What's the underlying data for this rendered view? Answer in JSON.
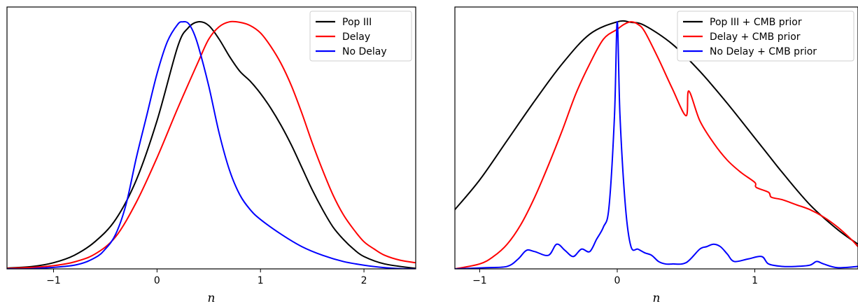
{
  "chart_data": [
    {
      "type": "line",
      "xlabel": "n",
      "ylabel": "",
      "xlim": [
        -1.45,
        2.5
      ],
      "ylim": [
        0,
        1.06
      ],
      "xticks": [
        -1,
        0,
        1,
        2
      ],
      "xtick_labels": [
        "−1",
        "0",
        "1",
        "2"
      ],
      "grid": false,
      "legend_position": "top-right",
      "series": [
        {
          "name": "Pop III",
          "color": "#000000",
          "x": [
            -1.45,
            -1.2,
            -1.0,
            -0.8,
            -0.6,
            -0.4,
            -0.2,
            0.0,
            0.2,
            0.3,
            0.4,
            0.5,
            0.6,
            0.7,
            0.8,
            0.9,
            1.0,
            1.1,
            1.2,
            1.3,
            1.4,
            1.5,
            1.6,
            1.7,
            1.8,
            1.9,
            2.0,
            2.2,
            2.5
          ],
          "values": [
            0.003,
            0.01,
            0.025,
            0.055,
            0.11,
            0.2,
            0.36,
            0.6,
            0.9,
            0.975,
            1.0,
            0.985,
            0.93,
            0.86,
            0.8,
            0.76,
            0.71,
            0.65,
            0.58,
            0.5,
            0.41,
            0.32,
            0.24,
            0.17,
            0.12,
            0.08,
            0.05,
            0.02,
            0.002
          ]
        },
        {
          "name": "Delay",
          "color": "#ff0000",
          "x": [
            -1.45,
            -1.2,
            -1.0,
            -0.8,
            -0.6,
            -0.4,
            -0.2,
            0.0,
            0.2,
            0.4,
            0.5,
            0.6,
            0.7,
            0.8,
            0.9,
            1.0,
            1.1,
            1.2,
            1.3,
            1.4,
            1.5,
            1.6,
            1.7,
            1.8,
            1.9,
            2.0,
            2.1,
            2.2,
            2.35,
            2.5
          ],
          "values": [
            0.002,
            0.006,
            0.013,
            0.028,
            0.06,
            0.13,
            0.27,
            0.45,
            0.65,
            0.84,
            0.93,
            0.98,
            1.0,
            0.998,
            0.985,
            0.955,
            0.9,
            0.83,
            0.74,
            0.63,
            0.51,
            0.4,
            0.3,
            0.22,
            0.16,
            0.11,
            0.08,
            0.055,
            0.035,
            0.025
          ]
        },
        {
          "name": "No Delay",
          "color": "#0000ff",
          "x": [
            -1.45,
            -1.2,
            -0.8,
            -0.6,
            -0.5,
            -0.4,
            -0.3,
            -0.2,
            -0.1,
            0.0,
            0.1,
            0.2,
            0.25,
            0.3,
            0.35,
            0.4,
            0.5,
            0.6,
            0.7,
            0.8,
            0.9,
            1.0,
            1.2,
            1.4,
            1.6,
            1.8,
            2.0,
            2.2,
            2.35,
            2.5
          ],
          "values": [
            0.0,
            0.001,
            0.015,
            0.045,
            0.08,
            0.14,
            0.26,
            0.45,
            0.62,
            0.79,
            0.92,
            0.99,
            1.0,
            0.995,
            0.96,
            0.9,
            0.74,
            0.55,
            0.4,
            0.3,
            0.24,
            0.2,
            0.14,
            0.09,
            0.055,
            0.03,
            0.015,
            0.005,
            0.001,
            0.0
          ]
        }
      ]
    },
    {
      "type": "line",
      "xlabel": "n",
      "ylabel": "",
      "xlim": [
        -1.18,
        1.75
      ],
      "ylim": [
        0,
        1.06
      ],
      "xticks": [
        -1,
        0,
        1
      ],
      "xtick_labels": [
        "−1",
        "0",
        "1"
      ],
      "grid": false,
      "legend_position": "top-right",
      "series": [
        {
          "name": "Pop III + CMB prior",
          "color": "#000000",
          "x": [
            -1.18,
            -1.0,
            -0.8,
            -0.6,
            -0.4,
            -0.2,
            0.0,
            0.1,
            0.2,
            0.4,
            0.6,
            0.8,
            1.0,
            1.1,
            1.2,
            1.4,
            1.6,
            1.75
          ],
          "values": [
            0.24,
            0.36,
            0.52,
            0.68,
            0.83,
            0.95,
            1.0,
            0.998,
            0.985,
            0.91,
            0.8,
            0.67,
            0.53,
            0.46,
            0.39,
            0.26,
            0.16,
            0.1
          ]
        },
        {
          "name": "Delay + CMB prior",
          "color": "#ff0000",
          "x": [
            -1.18,
            -1.0,
            -0.9,
            -0.8,
            -0.7,
            -0.6,
            -0.5,
            -0.4,
            -0.3,
            -0.2,
            -0.1,
            0.0,
            0.05,
            0.1,
            0.15,
            0.2,
            0.3,
            0.4,
            0.5,
            0.52,
            0.6,
            0.7,
            0.8,
            0.9,
            1.0,
            1.01,
            1.1,
            1.12,
            1.2,
            1.3,
            1.4,
            1.5,
            1.6,
            1.7,
            1.75
          ],
          "values": [
            0.0,
            0.02,
            0.05,
            0.1,
            0.18,
            0.29,
            0.42,
            0.56,
            0.71,
            0.83,
            0.93,
            0.97,
            0.99,
            1.0,
            0.99,
            0.96,
            0.85,
            0.73,
            0.62,
            0.72,
            0.6,
            0.51,
            0.44,
            0.39,
            0.35,
            0.33,
            0.31,
            0.29,
            0.28,
            0.26,
            0.24,
            0.21,
            0.17,
            0.12,
            0.09
          ]
        },
        {
          "name": "No Delay + CMB prior",
          "color": "#0000ff",
          "x": [
            -1.18,
            -0.95,
            -0.8,
            -0.72,
            -0.66,
            -0.6,
            -0.5,
            -0.44,
            -0.38,
            -0.32,
            -0.26,
            -0.2,
            -0.15,
            -0.1,
            -0.06,
            -0.02,
            0.0,
            0.02,
            0.06,
            0.1,
            0.15,
            0.2,
            0.25,
            0.3,
            0.35,
            0.4,
            0.5,
            0.6,
            0.65,
            0.7,
            0.75,
            0.8,
            0.85,
            0.95,
            1.05,
            1.1,
            1.2,
            1.3,
            1.4,
            1.45,
            1.5,
            1.6,
            1.75
          ],
          "values": [
            0.0,
            0.005,
            0.01,
            0.04,
            0.075,
            0.07,
            0.055,
            0.1,
            0.075,
            0.05,
            0.08,
            0.07,
            0.12,
            0.17,
            0.25,
            0.62,
            1.0,
            0.62,
            0.25,
            0.09,
            0.08,
            0.065,
            0.055,
            0.03,
            0.02,
            0.02,
            0.025,
            0.08,
            0.09,
            0.1,
            0.09,
            0.06,
            0.03,
            0.04,
            0.05,
            0.02,
            0.01,
            0.01,
            0.015,
            0.03,
            0.02,
            0.005,
            0.01
          ]
        }
      ]
    }
  ]
}
